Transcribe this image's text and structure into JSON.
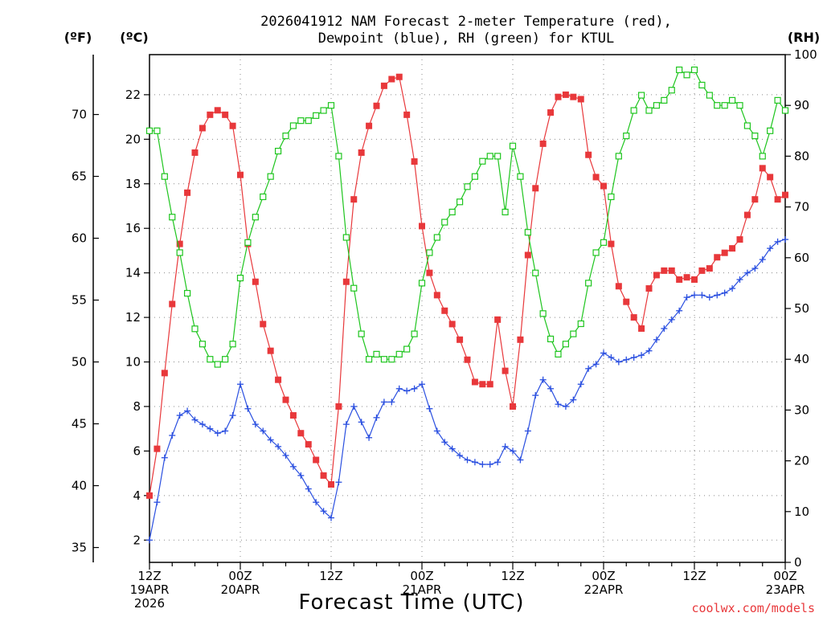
{
  "header": {
    "title_line1": "2026041912 NAM Forecast 2-meter Temperature (red),",
    "title_line2": "Dewpoint (blue), RH (green) for KTUL"
  },
  "units": {
    "fahrenheit": "(ºF)",
    "celsius": "(ºC)",
    "rh": "(RH)"
  },
  "footer": {
    "xaxis_title": "Forecast Time (UTC)",
    "watermark": "coolwx.com/models"
  },
  "colors": {
    "temperature": "#e8383b",
    "dewpoint": "#2a4fe0",
    "rh": "#1ec51e",
    "grid": "#888888"
  },
  "chart_data": {
    "type": "line",
    "title": "2026041912 NAM Forecast 2-meter Temperature (red), Dewpoint (blue), RH (green) for KTUL",
    "xlabel": "Forecast Time (UTC)",
    "x_unit": "forecast hour from 2026-04-19 12Z",
    "xlim": [
      0,
      84
    ],
    "x_ticks": [
      {
        "hour": 0,
        "lines": [
          "12Z",
          "19APR",
          "2026"
        ]
      },
      {
        "hour": 12,
        "lines": [
          "00Z",
          "20APR"
        ]
      },
      {
        "hour": 24,
        "lines": [
          "12Z"
        ]
      },
      {
        "hour": 36,
        "lines": [
          "00Z",
          "21APR"
        ]
      },
      {
        "hour": 48,
        "lines": [
          "12Z"
        ]
      },
      {
        "hour": 60,
        "lines": [
          "00Z",
          "22APR"
        ]
      },
      {
        "hour": 72,
        "lines": [
          "12Z"
        ]
      },
      {
        "hour": 84,
        "lines": [
          "00Z",
          "23APR"
        ]
      }
    ],
    "axes": {
      "celsius": {
        "label": "(ºC)",
        "ylim": [
          1,
          23.8
        ],
        "ticks": [
          2,
          4,
          6,
          8,
          10,
          12,
          14,
          16,
          18,
          20,
          22
        ]
      },
      "fahrenheit": {
        "label": "(ºF)",
        "ylim": [
          33.8,
          74.84
        ],
        "ticks": [
          35,
          40,
          45,
          50,
          55,
          60,
          65,
          70
        ]
      },
      "rh": {
        "label": "(RH)",
        "ylim": [
          0,
          100
        ],
        "ticks": [
          0,
          10,
          20,
          30,
          40,
          50,
          60,
          70,
          80,
          90,
          100
        ]
      }
    },
    "grid": true,
    "series": [
      {
        "axis": "celsius",
        "marker": "filled-square",
        "color": "#e8383b",
        "x": [
          0,
          1,
          2,
          3,
          4,
          5,
          6,
          7,
          8,
          9,
          10,
          11,
          12,
          13,
          14,
          15,
          16,
          17,
          18,
          19,
          20,
          21,
          22,
          23,
          24,
          25,
          26,
          27,
          28,
          29,
          30,
          31,
          32,
          33,
          34,
          35,
          36,
          37,
          38,
          39,
          40,
          41,
          42,
          43,
          44,
          45,
          46,
          47,
          48,
          49,
          50,
          51,
          52,
          53,
          54,
          55,
          56,
          57,
          58,
          59,
          60,
          61,
          62,
          63,
          64,
          65,
          66,
          67,
          68,
          69,
          70,
          71,
          72,
          73,
          74,
          75,
          76,
          77,
          78,
          79,
          80,
          81,
          82,
          83,
          84
        ],
        "values": [
          4.0,
          6.1,
          9.5,
          12.6,
          15.3,
          17.6,
          19.4,
          20.5,
          21.1,
          21.3,
          21.1,
          20.6,
          18.4,
          15.3,
          13.6,
          11.7,
          10.5,
          9.2,
          8.3,
          7.6,
          6.8,
          6.3,
          5.6,
          4.9,
          4.5,
          8.0,
          13.6,
          17.3,
          19.4,
          20.6,
          21.5,
          22.4,
          22.7,
          22.8,
          21.1,
          19.0,
          16.1,
          14.0,
          13.0,
          12.3,
          11.7,
          11.0,
          10.1,
          9.1,
          9.0,
          9.0,
          11.9,
          9.6,
          8.0,
          11.0,
          14.8,
          17.8,
          19.8,
          21.2,
          21.9,
          22.0,
          21.9,
          21.8,
          19.3,
          18.3,
          17.9,
          15.3,
          13.4,
          12.7,
          12.0,
          11.5,
          13.3,
          13.9,
          14.1,
          14.1,
          13.7,
          13.8,
          13.7,
          14.1,
          14.2,
          14.7,
          14.9,
          15.1,
          15.5,
          16.6,
          17.3,
          18.7,
          18.3,
          17.3,
          17.5
        ]
      },
      {
        "axis": "celsius",
        "marker": "plus",
        "color": "#2a4fe0",
        "x": [
          0,
          1,
          2,
          3,
          4,
          5,
          6,
          7,
          8,
          9,
          10,
          11,
          12,
          13,
          14,
          15,
          16,
          17,
          18,
          19,
          20,
          21,
          22,
          23,
          24,
          25,
          26,
          27,
          28,
          29,
          30,
          31,
          32,
          33,
          34,
          35,
          36,
          37,
          38,
          39,
          40,
          41,
          42,
          43,
          44,
          45,
          46,
          47,
          48,
          49,
          50,
          51,
          52,
          53,
          54,
          55,
          56,
          57,
          58,
          59,
          60,
          61,
          62,
          63,
          64,
          65,
          66,
          67,
          68,
          69,
          70,
          71,
          72,
          73,
          74,
          75,
          76,
          77,
          78,
          79,
          80,
          81,
          82,
          83,
          84
        ],
        "values": [
          2.0,
          3.7,
          5.7,
          6.7,
          7.6,
          7.8,
          7.4,
          7.2,
          7.0,
          6.8,
          6.9,
          7.6,
          9.0,
          7.9,
          7.2,
          6.9,
          6.5,
          6.2,
          5.8,
          5.3,
          4.9,
          4.3,
          3.7,
          3.3,
          3.0,
          4.6,
          7.2,
          8.0,
          7.3,
          6.6,
          7.5,
          8.2,
          8.2,
          8.8,
          8.7,
          8.8,
          9.0,
          7.9,
          6.9,
          6.4,
          6.1,
          5.8,
          5.6,
          5.5,
          5.4,
          5.4,
          5.5,
          6.2,
          6.0,
          5.6,
          6.9,
          8.5,
          9.2,
          8.8,
          8.1,
          8.0,
          8.3,
          9.0,
          9.7,
          9.9,
          10.4,
          10.2,
          10.0,
          10.1,
          10.2,
          10.3,
          10.5,
          11.0,
          11.5,
          11.9,
          12.3,
          12.9,
          13.0,
          13.0,
          12.9,
          13.0,
          13.1,
          13.3,
          13.7,
          14.0,
          14.2,
          14.6,
          15.1,
          15.4,
          15.5
        ]
      },
      {
        "axis": "rh",
        "marker": "open-square",
        "color": "#1ec51e",
        "x": [
          0,
          1,
          2,
          3,
          4,
          5,
          6,
          7,
          8,
          9,
          10,
          11,
          12,
          13,
          14,
          15,
          16,
          17,
          18,
          19,
          20,
          21,
          22,
          23,
          24,
          25,
          26,
          27,
          28,
          29,
          30,
          31,
          32,
          33,
          34,
          35,
          36,
          37,
          38,
          39,
          40,
          41,
          42,
          43,
          44,
          45,
          46,
          47,
          48,
          49,
          50,
          51,
          52,
          53,
          54,
          55,
          56,
          57,
          58,
          59,
          60,
          61,
          62,
          63,
          64,
          65,
          66,
          67,
          68,
          69,
          70,
          71,
          72,
          73,
          74,
          75,
          76,
          77,
          78,
          79,
          80,
          81,
          82,
          83,
          84
        ],
        "values": [
          85,
          85,
          76,
          68,
          61,
          53,
          46,
          43,
          40,
          39,
          40,
          43,
          56,
          63,
          68,
          72,
          76,
          81,
          84,
          86,
          87,
          87,
          88,
          89,
          90,
          80,
          64,
          54,
          45,
          40,
          41,
          40,
          40,
          41,
          42,
          45,
          55,
          61,
          64,
          67,
          69,
          71,
          74,
          76,
          79,
          80,
          80,
          69,
          82,
          76,
          65,
          57,
          49,
          44,
          41,
          43,
          45,
          47,
          55,
          61,
          63,
          72,
          80,
          84,
          89,
          92,
          89,
          90,
          91,
          93,
          97,
          96,
          97,
          94,
          92,
          90,
          90,
          91,
          90,
          86,
          84,
          80,
          85,
          91,
          89
        ]
      }
    ]
  }
}
